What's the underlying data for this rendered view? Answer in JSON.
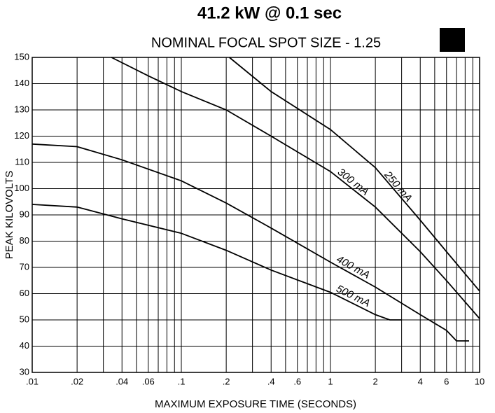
{
  "chart_data": {
    "type": "line",
    "title": "41.2 kW @ 0.1 sec",
    "subtitle": "NOMINAL FOCAL SPOT SIZE - 1.25",
    "xlabel": "MAXIMUM EXPOSURE TIME (SECONDS)",
    "ylabel": "PEAK KILOVOLTS",
    "xscale": "log",
    "xlim": [
      0.01,
      10
    ],
    "ylim": [
      30,
      150
    ],
    "xticks": [
      {
        "value": 0.01,
        "label": ".01"
      },
      {
        "value": 0.02,
        "label": ".02"
      },
      {
        "value": 0.04,
        "label": ".04"
      },
      {
        "value": 0.06,
        "label": ".06"
      },
      {
        "value": 0.1,
        "label": ".1"
      },
      {
        "value": 0.2,
        "label": ".2"
      },
      {
        "value": 0.4,
        "label": ".4"
      },
      {
        "value": 0.6,
        "label": ".6"
      },
      1,
      2,
      4,
      6,
      10
    ],
    "x_minor_grid": [
      0.03,
      0.05,
      0.07,
      0.08,
      0.09,
      0.3,
      0.5,
      0.7,
      0.8,
      0.9,
      3,
      5,
      7,
      8,
      9
    ],
    "yticks": [
      30,
      40,
      50,
      60,
      70,
      80,
      90,
      100,
      110,
      120,
      130,
      140,
      150
    ],
    "grid": true,
    "series": [
      {
        "name": "250 mA",
        "color": "#000000",
        "x": [
          0.21,
          0.4,
          1,
          2,
          4,
          6,
          10
        ],
        "values": [
          150,
          137,
          122.5,
          108,
          88,
          76,
          61
        ]
      },
      {
        "name": "300 mA",
        "color": "#000000",
        "x": [
          0.034,
          0.06,
          0.1,
          0.2,
          0.4,
          1,
          2,
          4,
          6,
          10
        ],
        "values": [
          150,
          143,
          137,
          130,
          120,
          106.5,
          93,
          76,
          65,
          50.5
        ]
      },
      {
        "name": "400 mA",
        "color": "#000000",
        "x": [
          0.01,
          0.02,
          0.04,
          0.1,
          0.2,
          0.4,
          1,
          2,
          4,
          6,
          7,
          8.5
        ],
        "values": [
          117,
          116,
          111,
          103,
          94.5,
          85,
          72,
          62.5,
          52,
          46,
          42,
          42
        ]
      },
      {
        "name": "500 mA",
        "color": "#000000",
        "x": [
          0.01,
          0.02,
          0.04,
          0.1,
          0.2,
          0.4,
          1,
          2,
          2.5,
          3
        ],
        "values": [
          94,
          93,
          88.5,
          83,
          76.5,
          69,
          60.5,
          52,
          50,
          50
        ]
      }
    ]
  }
}
